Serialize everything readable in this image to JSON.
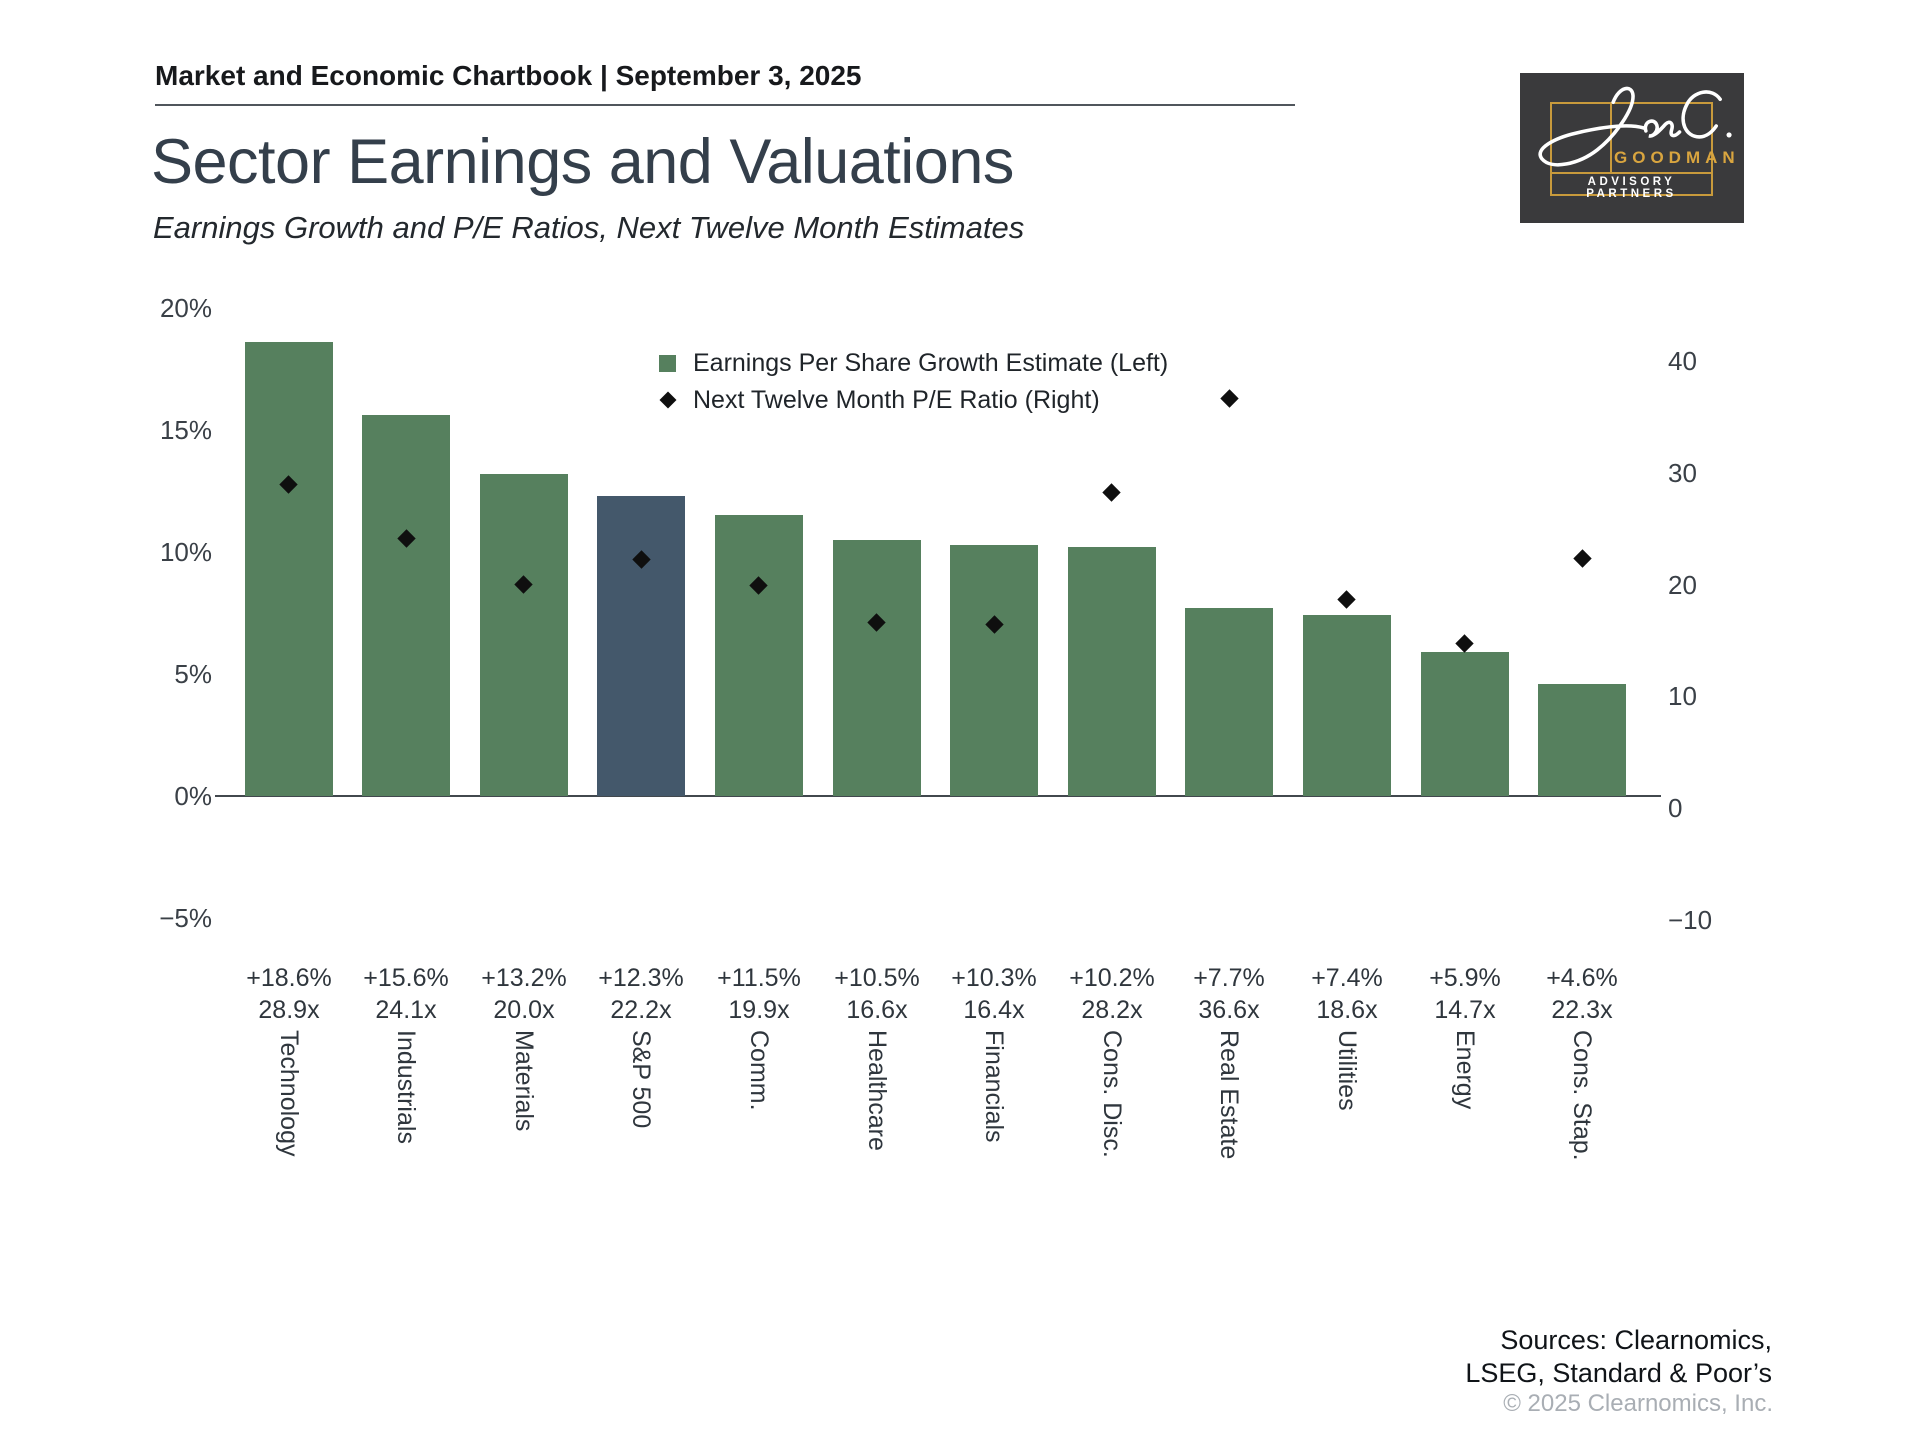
{
  "header": {
    "text": "Market and Economic Chartbook | September 3, 2025"
  },
  "title": "Sector Earnings and Valuations",
  "subtitle": "Earnings Growth and P/E Ratios, Next Twelve Month Estimates",
  "logo": {
    "signature": "Jon C.",
    "name": "GOODMAN",
    "tagline": "ADVISORY PARTNERS",
    "colors": {
      "bg": "#3a3a3c",
      "gold": "#c89a3c",
      "text_gold": "#d9a53f",
      "script": "#ffffff"
    }
  },
  "legend": [
    {
      "marker": "square",
      "label": "Earnings Per Share Growth Estimate (Left)"
    },
    {
      "marker": "diamond",
      "label": "Next Twelve Month P/E Ratio (Right)"
    }
  ],
  "chart_data": {
    "type": "bar",
    "subtype": "dual-axis bar + diamond scatter",
    "categories": [
      "Technology",
      "Industrials",
      "Materials",
      "S&P 500",
      "Comm.",
      "Healthcare",
      "Financials",
      "Cons. Disc.",
      "Real Estate",
      "Utilities",
      "Energy",
      "Cons. Stap."
    ],
    "series": [
      {
        "name": "Earnings Per Share Growth Estimate (Left)",
        "type": "bar",
        "axis": "left",
        "values": [
          18.6,
          15.6,
          13.2,
          12.3,
          11.5,
          10.5,
          10.3,
          10.2,
          7.7,
          7.4,
          5.9,
          4.6
        ]
      },
      {
        "name": "Next Twelve Month P/E Ratio (Right)",
        "type": "scatter",
        "marker": "diamond",
        "axis": "right",
        "values": [
          28.9,
          24.1,
          20.0,
          22.2,
          19.9,
          16.6,
          16.4,
          28.2,
          36.6,
          18.6,
          14.7,
          22.3
        ]
      }
    ],
    "bar_value_labels": [
      "+18.6%",
      "+15.6%",
      "+13.2%",
      "+12.3%",
      "+11.5%",
      "+10.5%",
      "+10.3%",
      "+10.2%",
      "+7.7%",
      "+7.4%",
      "+5.9%",
      "+4.6%"
    ],
    "pe_value_labels": [
      "28.9x",
      "24.1x",
      "20.0x",
      "22.2x",
      "19.9x",
      "16.6x",
      "16.4x",
      "28.2x",
      "36.6x",
      "18.6x",
      "14.7x",
      "22.3x"
    ],
    "left_axis": {
      "label_format": "percent",
      "ticks": [
        "20%",
        "15%",
        "10%",
        "5%",
        "0%",
        "−5%"
      ],
      "tick_values": [
        20,
        15,
        10,
        5,
        0,
        -5
      ],
      "lim": [
        -5,
        20
      ]
    },
    "right_axis": {
      "label_format": "number",
      "ticks": [
        "40",
        "30",
        "20",
        "10",
        "0",
        "−10"
      ],
      "tick_values": [
        40,
        30,
        20,
        10,
        0,
        -10
      ],
      "lim": [
        -10,
        40
      ]
    },
    "grid": false,
    "legend_position": "upper center inside plot",
    "highlight_index": 3,
    "colors": {
      "bar": "#56805E",
      "highlight_bar": "#44586B",
      "diamond": "#0f0f0f"
    }
  },
  "sources": {
    "line1": "Sources: Clearnomics,",
    "line2": "LSEG, Standard & Poor’s",
    "copyright": "© 2025 Clearnomics, Inc."
  }
}
